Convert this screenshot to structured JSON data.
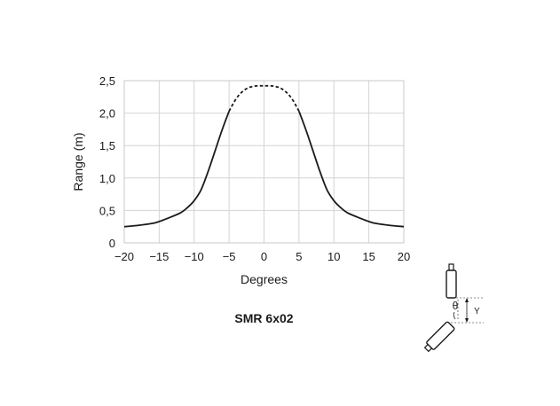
{
  "chart_data": {
    "type": "line",
    "title": "SMR 6x02",
    "xlabel": "Degrees",
    "ylabel": "Range (m)",
    "xlim": [
      -20,
      20
    ],
    "ylim": [
      0,
      2.5
    ],
    "x_ticks": [
      -20,
      -15,
      -10,
      -5,
      0,
      5,
      10,
      15,
      20
    ],
    "x_tick_labels": [
      "−20",
      "−15",
      "−10",
      "−5",
      "0",
      "5",
      "10",
      "15",
      "20"
    ],
    "y_ticks": [
      0,
      0.5,
      1.0,
      1.5,
      2.0,
      2.5
    ],
    "y_tick_labels": [
      "0",
      "0,5",
      "1,0",
      "1,5",
      "2,0",
      "2,5"
    ],
    "grid": true,
    "series": [
      {
        "style": "solid",
        "x": [
          -20,
          -18,
          -16,
          -15,
          -14,
          -12,
          -11,
          -10,
          -9,
          -8,
          -7,
          -6,
          -5
        ],
        "y": [
          0.25,
          0.27,
          0.3,
          0.33,
          0.37,
          0.46,
          0.54,
          0.65,
          0.82,
          1.1,
          1.42,
          1.74,
          2.03
        ]
      },
      {
        "style": "dashed",
        "x": [
          -5,
          -4,
          -3,
          -2,
          -1,
          0,
          1,
          2,
          3,
          4,
          5
        ],
        "y": [
          2.03,
          2.22,
          2.34,
          2.4,
          2.42,
          2.42,
          2.42,
          2.4,
          2.34,
          2.22,
          2.03
        ]
      },
      {
        "style": "solid",
        "x": [
          5,
          6,
          7,
          8,
          9,
          10,
          11,
          12,
          14,
          15,
          16,
          18,
          20
        ],
        "y": [
          2.03,
          1.74,
          1.42,
          1.1,
          0.82,
          0.65,
          0.54,
          0.46,
          0.37,
          0.33,
          0.3,
          0.27,
          0.25
        ]
      }
    ]
  },
  "diagram": {
    "angle_symbol": "θ",
    "distance_symbol": "Y"
  }
}
